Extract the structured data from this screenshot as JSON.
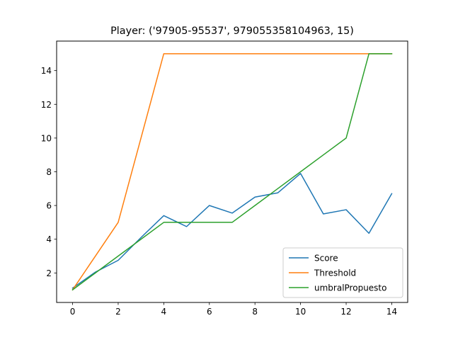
{
  "chart_data": {
    "type": "line",
    "title": "Player: ('97905-95537', 979055358104963, 15)",
    "xlabel": "",
    "ylabel": "",
    "xlim": [
      -0.7,
      14.7
    ],
    "ylim": [
      0.25,
      15.75
    ],
    "xticks": [
      0,
      2,
      4,
      6,
      8,
      10,
      12,
      14
    ],
    "yticks": [
      2,
      4,
      6,
      8,
      10,
      12,
      14
    ],
    "grid": false,
    "legend_position": "lower-right",
    "x": [
      0,
      1,
      2,
      3,
      4,
      5,
      6,
      7,
      8,
      9,
      10,
      11,
      12,
      13,
      14
    ],
    "series": [
      {
        "name": "Score",
        "color": "#1f77b4",
        "values": [
          1.1,
          2.05,
          2.75,
          4.1,
          5.4,
          4.75,
          6.0,
          5.55,
          6.5,
          6.75,
          7.9,
          5.5,
          5.75,
          4.35,
          6.7
        ]
      },
      {
        "name": "Threshold",
        "color": "#ff7f0e",
        "values": [
          1.0,
          3.0,
          5.0,
          10.0,
          15.0,
          15.0,
          15.0,
          15.0,
          15.0,
          15.0,
          15.0,
          15.0,
          15.0,
          15.0,
          15.0
        ]
      },
      {
        "name": "umbralPropuesto",
        "color": "#2ca02c",
        "values": [
          1.0,
          2.0,
          3.0,
          4.0,
          5.0,
          5.0,
          5.0,
          5.0,
          6.0,
          7.0,
          8.0,
          9.0,
          10.0,
          15.0,
          15.0
        ]
      }
    ]
  }
}
